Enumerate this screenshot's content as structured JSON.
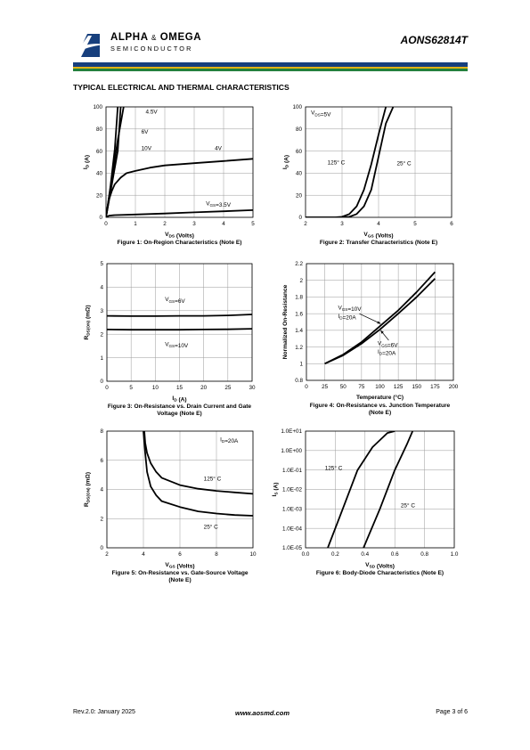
{
  "header": {
    "brand": {
      "word1": "ALPHA",
      "amp": "&",
      "word2": "OMEGA",
      "sub": "SEMICONDUCTOR"
    },
    "part_number": "AONS62814T",
    "band_colors": {
      "navy": "#173f7d",
      "gold": "#e3b416",
      "green": "#24803e"
    }
  },
  "section_title": "TYPICAL ELECTRICAL AND THERMAL CHARACTERISTICS",
  "footer": {
    "revision": "Rev.2.0: January 2025",
    "url": "www.aosmd.com",
    "page": "Page 3 of 6"
  },
  "chart_data": [
    {
      "type": "line",
      "caption": "Figure 1: On-Region Characteristics (Note E)",
      "xlabel": "VDS (Volts)",
      "ylabel": "ID (A)",
      "xlim": [
        0,
        5
      ],
      "ylim": [
        0,
        100
      ],
      "xticks": [
        "0",
        "1",
        "2",
        "3",
        "4",
        "5"
      ],
      "yticks": [
        "0",
        "20",
        "40",
        "60",
        "80",
        "100"
      ],
      "grid": true,
      "series": [
        {
          "name": "10V",
          "x": [
            0,
            0.2,
            0.4,
            0.6
          ],
          "y": [
            0,
            35,
            70,
            100
          ]
        },
        {
          "name": "6V",
          "x": [
            0,
            0.2,
            0.4,
            0.5
          ],
          "y": [
            0,
            30,
            60,
            100
          ]
        },
        {
          "name": "4.5V",
          "x": [
            0,
            0.15,
            0.3,
            0.4
          ],
          "y": [
            0,
            28,
            62,
            100
          ]
        },
        {
          "name": "4V",
          "x": [
            0,
            0.1,
            0.2,
            0.3,
            0.5,
            0.7,
            1,
            1.5,
            2,
            3,
            4,
            5
          ],
          "y": [
            0,
            16,
            24,
            30,
            36,
            40,
            42,
            45,
            47,
            49,
            51,
            53
          ]
        },
        {
          "name": "VGS=3.5V",
          "x": [
            0,
            0.1,
            0.3,
            1,
            2,
            3,
            4,
            5
          ],
          "y": [
            0,
            1.5,
            2,
            2.6,
            3.5,
            4.5,
            5.5,
            6.5
          ]
        }
      ],
      "annotations": [
        {
          "text": "4.5V",
          "x": 1.35,
          "y": 94
        },
        {
          "text": "6V",
          "x": 1.2,
          "y": 76
        },
        {
          "text": "10V",
          "x": 1.2,
          "y": 61
        },
        {
          "text": "4V",
          "x": 3.7,
          "y": 61
        },
        {
          "text": "VGS=3.5V",
          "x": 3.4,
          "y": 11
        }
      ]
    },
    {
      "type": "line",
      "caption": "Figure 2: Transfer Characteristics (Note E)",
      "xlabel": "VGS (Volts)",
      "ylabel": "ID (A)",
      "xlim": [
        2,
        6
      ],
      "ylim": [
        0,
        100
      ],
      "xticks": [
        "2",
        "3",
        "4",
        "5",
        "6"
      ],
      "yticks": [
        "0",
        "20",
        "40",
        "60",
        "80",
        "100"
      ],
      "grid": true,
      "series": [
        {
          "name": "125°C",
          "x": [
            2,
            2.8,
            3.0,
            3.2,
            3.4,
            3.6,
            3.8,
            4.0,
            4.2
          ],
          "y": [
            0,
            0,
            0.5,
            3,
            10,
            25,
            48,
            75,
            100
          ]
        },
        {
          "name": "25°C",
          "x": [
            2,
            3.0,
            3.2,
            3.4,
            3.6,
            3.8,
            4.0,
            4.2,
            4.4
          ],
          "y": [
            0,
            0,
            0.5,
            3,
            10,
            25,
            55,
            85,
            100
          ]
        }
      ],
      "annotations": [
        {
          "text": "VDS=5V",
          "x": 2.15,
          "y": 93
        },
        {
          "text": "125° C",
          "x": 2.6,
          "y": 48
        },
        {
          "text": "25° C",
          "x": 4.5,
          "y": 47
        }
      ]
    },
    {
      "type": "line",
      "caption": "Figure 3: On-Resistance vs. Drain Current and Gate Voltage (Note E)",
      "xlabel": "ID (A)",
      "ylabel": "RDS(ON) (mΩ)",
      "xlim": [
        0,
        30
      ],
      "ylim": [
        0,
        5
      ],
      "xticks": [
        "0",
        "5",
        "10",
        "15",
        "20",
        "25",
        "30"
      ],
      "yticks": [
        "0",
        "1",
        "2",
        "3",
        "4",
        "5"
      ],
      "grid": true,
      "series": [
        {
          "name": "VGS=6V",
          "x": [
            0,
            5,
            10,
            15,
            20,
            25,
            30
          ],
          "y": [
            2.78,
            2.77,
            2.77,
            2.78,
            2.78,
            2.8,
            2.84
          ]
        },
        {
          "name": "VGS=10V",
          "x": [
            0,
            5,
            10,
            15,
            20,
            25,
            30
          ],
          "y": [
            2.2,
            2.19,
            2.19,
            2.19,
            2.2,
            2.21,
            2.23
          ]
        }
      ],
      "annotations": [
        {
          "text": "VGS=6V",
          "x": 12,
          "y": 3.4
        },
        {
          "text": "VGS=10V",
          "x": 12,
          "y": 1.5
        }
      ]
    },
    {
      "type": "line",
      "caption": "Figure 4: On-Resistance vs. Junction Temperature (Note E)",
      "xlabel": "Temperature (°C)",
      "ylabel": "Normalized On-Resistance",
      "xlim": [
        0,
        200
      ],
      "ylim": [
        0.8,
        2.2
      ],
      "xticks": [
        "0",
        "25",
        "50",
        "75",
        "100",
        "125",
        "150",
        "175",
        "200"
      ],
      "yticks": [
        "0.8",
        "1",
        "1.2",
        "1.4",
        "1.6",
        "1.8",
        "2",
        "2.2"
      ],
      "grid": true,
      "series": [
        {
          "name": "VGS=10V ID=20A",
          "x": [
            25,
            50,
            75,
            100,
            125,
            150,
            175
          ],
          "y": [
            1.0,
            1.11,
            1.26,
            1.45,
            1.64,
            1.86,
            2.1
          ]
        },
        {
          "name": "VGS=6V ID=20A",
          "x": [
            25,
            50,
            75,
            100,
            125,
            150,
            175
          ],
          "y": [
            1.0,
            1.1,
            1.24,
            1.41,
            1.6,
            1.8,
            2.02
          ]
        }
      ],
      "annotations": [
        {
          "text": "VGS=10V",
          "x": 43,
          "y": 1.65
        },
        {
          "text": "ID=20A",
          "x": 43,
          "y": 1.55
        },
        {
          "text": "VGS=6V",
          "x": 97,
          "y": 1.22
        },
        {
          "text": "ID=20A",
          "x": 97,
          "y": 1.12
        }
      ]
    },
    {
      "type": "line",
      "caption": "Figure 5: On-Resistance vs. Gate-Source Voltage (Note E)",
      "xlabel": "VGS (Volts)",
      "ylabel": "RDS(ON) (mΩ)",
      "xlim": [
        2,
        10
      ],
      "ylim": [
        0,
        8
      ],
      "xticks": [
        "2",
        "4",
        "6",
        "8",
        "10"
      ],
      "yticks": [
        "0",
        "2",
        "4",
        "6",
        "8"
      ],
      "grid": true,
      "series": [
        {
          "name": "125°C",
          "x": [
            4.05,
            4.1,
            4.2,
            4.4,
            4.7,
            5,
            6,
            7,
            8,
            9,
            10
          ],
          "y": [
            8,
            7.2,
            6.5,
            5.8,
            5.2,
            4.8,
            4.3,
            4.05,
            3.9,
            3.8,
            3.7
          ]
        },
        {
          "name": "25°C",
          "x": [
            4.0,
            4.1,
            4.2,
            4.4,
            4.7,
            5,
            6,
            7,
            8,
            9,
            10
          ],
          "y": [
            8,
            6.5,
            5.2,
            4.2,
            3.6,
            3.2,
            2.8,
            2.5,
            2.35,
            2.25,
            2.2
          ]
        }
      ],
      "annotations": [
        {
          "text": "ID=20A",
          "x": 8.2,
          "y": 7.3
        },
        {
          "text": "125° C",
          "x": 7.3,
          "y": 4.6
        },
        {
          "text": "25° C",
          "x": 7.3,
          "y": 1.3
        }
      ]
    },
    {
      "type": "line",
      "caption": "Figure 6: Body-Diode Characteristics (Note E)",
      "xlabel": "VSD (Volts)",
      "ylabel": "IS (A)",
      "xlim": [
        0.0,
        1.0
      ],
      "ylim": [
        1e-05,
        10
      ],
      "yscale": "log",
      "xticks": [
        "0.0",
        "0.2",
        "0.4",
        "0.6",
        "0.8",
        "1.0"
      ],
      "yticks": [
        "1.0E-05",
        "1.0E-04",
        "1.0E-03",
        "1.0E-02",
        "1.0E-01",
        "1.0E+00",
        "1.0E+01"
      ],
      "grid": true,
      "series": [
        {
          "name": "125°C",
          "x": [
            0.15,
            0.25,
            0.35,
            0.45,
            0.55,
            0.6
          ],
          "y": [
            1e-05,
            0.001,
            0.1,
            1.5,
            8,
            10
          ]
        },
        {
          "name": "25°C",
          "x": [
            0.39,
            0.5,
            0.6,
            0.68,
            0.72
          ],
          "y": [
            1e-05,
            0.001,
            0.1,
            2,
            10
          ]
        }
      ],
      "annotations": [
        {
          "text": "125° C",
          "x": 0.13,
          "y": 0.1
        },
        {
          "text": "25° C",
          "x": 0.64,
          "y": 0.0012
        }
      ]
    }
  ]
}
